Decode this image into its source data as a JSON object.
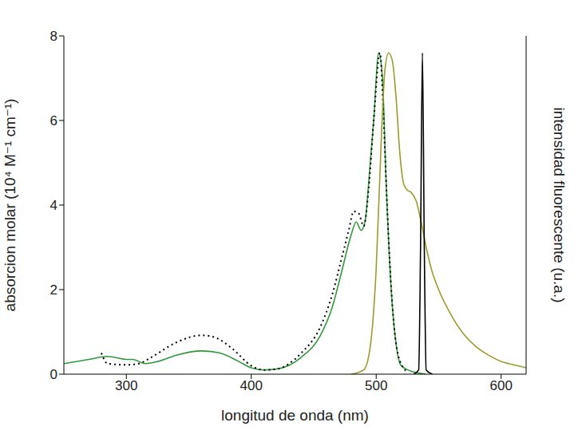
{
  "chart_data": {
    "type": "line",
    "xlabel": "longitud de onda (nm)",
    "ylabel": "absorcion molar (10⁴ M⁻¹ cm⁻¹)",
    "y2label": "intensidad fluorescente (u.a.)",
    "xlim": [
      250,
      620
    ],
    "xticks": [
      300,
      400,
      500,
      600
    ],
    "ylim": [
      0,
      8
    ],
    "yticks": [
      0,
      2,
      4,
      6,
      8
    ],
    "y2lim": [
      0,
      8
    ],
    "y2ticks": [],
    "grid": false,
    "series": [
      {
        "color": "#2f9a3a",
        "line_style": "solid",
        "marker": "none",
        "x": [
          250,
          270,
          285,
          300,
          305,
          315,
          325,
          340,
          360,
          375,
          390,
          400,
          410,
          420,
          440,
          455,
          465,
          473,
          480,
          484,
          488,
          491,
          495,
          498,
          502,
          505,
          508,
          512,
          516,
          520,
          530,
          540
        ],
        "values": [
          0.25,
          0.35,
          0.42,
          0.35,
          0.35,
          0.25,
          0.3,
          0.45,
          0.55,
          0.5,
          0.3,
          0.15,
          0.1,
          0.12,
          0.4,
          0.9,
          1.6,
          2.5,
          3.3,
          3.6,
          3.4,
          3.6,
          4.9,
          6.0,
          7.6,
          7.0,
          4.5,
          2.0,
          0.7,
          0.2,
          0.05,
          0
        ]
      },
      {
        "color": "#000000",
        "line_style": "dotted",
        "marker": "none",
        "x": [
          280,
          285,
          300,
          310,
          320,
          340,
          360,
          370,
          385,
          400,
          410,
          420,
          440,
          455,
          465,
          472,
          478,
          482,
          486,
          490,
          494,
          498,
          503,
          506,
          509,
          513,
          518,
          525
        ],
        "values": [
          0.5,
          0.25,
          0.22,
          0.25,
          0.4,
          0.75,
          0.92,
          0.88,
          0.6,
          0.2,
          0.1,
          0.12,
          0.5,
          1.1,
          1.9,
          2.7,
          3.4,
          3.85,
          3.8,
          3.5,
          4.4,
          6.0,
          7.6,
          6.0,
          3.8,
          1.6,
          0.4,
          0.05
        ]
      },
      {
        "color": "#9e9a2c",
        "line_style": "solid",
        "marker": "none",
        "axis": "y2",
        "x": [
          480,
          490,
          495,
          500,
          504,
          507,
          510,
          513,
          516,
          519,
          522,
          525,
          528,
          532,
          536,
          540,
          545,
          550,
          560,
          570,
          580,
          590,
          600,
          610,
          620
        ],
        "values": [
          0,
          0.1,
          0.6,
          2.5,
          5.5,
          7.2,
          7.6,
          7.4,
          6.5,
          5.2,
          4.5,
          4.35,
          4.3,
          4.1,
          3.6,
          3.0,
          2.4,
          2.0,
          1.4,
          0.95,
          0.65,
          0.45,
          0.3,
          0.22,
          0.15
        ]
      },
      {
        "color": "#000000",
        "line_style": "solid",
        "marker": "none",
        "axis": "y2",
        "x": [
          530,
          534,
          535.5,
          537,
          538.5,
          540,
          545
        ],
        "values": [
          0,
          0.1,
          3,
          7.6,
          3,
          0.1,
          0
        ]
      }
    ]
  }
}
